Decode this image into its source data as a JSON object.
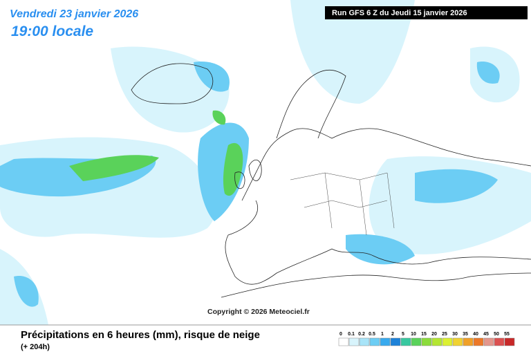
{
  "header": {
    "date": "Vendredi 23 janvier 2026",
    "time": "19:00 locale",
    "run": "Run GFS 6 Z du Jeudi 15 janvier 2026"
  },
  "copyright": "Copyright © 2026 Meteociel.fr",
  "footer": {
    "title": "Précipitations en 6 heures (mm), risque de neige",
    "lead": "(+ 204h)"
  },
  "legend": {
    "items": [
      {
        "label": "0",
        "color": "#ffffff"
      },
      {
        "label": "0.1",
        "color": "#d8f4fc"
      },
      {
        "label": "0.2",
        "color": "#a8e4f8"
      },
      {
        "label": "0.5",
        "color": "#6ccdf4"
      },
      {
        "label": "1",
        "color": "#38aaee"
      },
      {
        "label": "2",
        "color": "#1e82d8"
      },
      {
        "label": "5",
        "color": "#38c8a0"
      },
      {
        "label": "10",
        "color": "#5ad25a"
      },
      {
        "label": "15",
        "color": "#8cdc3c"
      },
      {
        "label": "20",
        "color": "#b4e632"
      },
      {
        "label": "25",
        "color": "#dcf032"
      },
      {
        "label": "30",
        "color": "#f0d232"
      },
      {
        "label": "35",
        "color": "#f0a028"
      },
      {
        "label": "40",
        "color": "#ec7828"
      },
      {
        "label": "45",
        "color": "#e4968c"
      },
      {
        "label": "50",
        "color": "#dc5050"
      },
      {
        "label": "55",
        "color": "#c82828"
      }
    ]
  }
}
